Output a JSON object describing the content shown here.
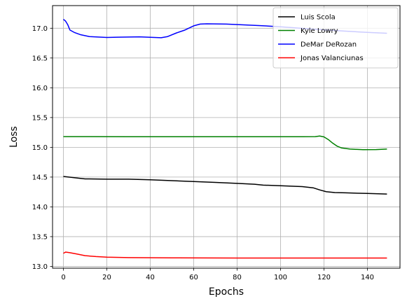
{
  "chart_data": {
    "type": "line",
    "title": "",
    "xlabel": "Epochs",
    "ylabel": "Loss",
    "xlim": [
      -5,
      155
    ],
    "ylim": [
      12.97,
      17.38
    ],
    "xticks": [
      0,
      20,
      40,
      60,
      80,
      100,
      120,
      140
    ],
    "yticks": [
      13.0,
      13.5,
      14.0,
      14.5,
      15.0,
      15.5,
      16.0,
      16.5,
      17.0
    ],
    "ytick_labels": [
      "13.0",
      "13.5",
      "14.0",
      "14.5",
      "15.0",
      "15.5",
      "16.0",
      "16.5",
      "17.0"
    ],
    "grid": true,
    "legend_position": "top-right",
    "series": [
      {
        "name": "Luis Scola",
        "color": "#000000",
        "points": [
          [
            0,
            14.51
          ],
          [
            5,
            14.49
          ],
          [
            10,
            14.47
          ],
          [
            20,
            14.465
          ],
          [
            30,
            14.465
          ],
          [
            40,
            14.455
          ],
          [
            50,
            14.44
          ],
          [
            60,
            14.425
          ],
          [
            70,
            14.41
          ],
          [
            80,
            14.395
          ],
          [
            88,
            14.38
          ],
          [
            92,
            14.365
          ],
          [
            100,
            14.355
          ],
          [
            110,
            14.34
          ],
          [
            115,
            14.32
          ],
          [
            118,
            14.285
          ],
          [
            121,
            14.255
          ],
          [
            125,
            14.24
          ],
          [
            130,
            14.235
          ],
          [
            140,
            14.225
          ],
          [
            149,
            14.215
          ]
        ]
      },
      {
        "name": "Kyle Lowry",
        "color": "#008000",
        "points": [
          [
            0,
            15.18
          ],
          [
            10,
            15.18
          ],
          [
            30,
            15.178
          ],
          [
            60,
            15.178
          ],
          [
            90,
            15.178
          ],
          [
            110,
            15.178
          ],
          [
            116,
            15.18
          ],
          [
            118,
            15.19
          ],
          [
            120,
            15.175
          ],
          [
            122,
            15.13
          ],
          [
            124,
            15.07
          ],
          [
            126,
            15.02
          ],
          [
            128,
            14.99
          ],
          [
            132,
            14.97
          ],
          [
            138,
            14.96
          ],
          [
            144,
            14.962
          ],
          [
            149,
            14.97
          ]
        ]
      },
      {
        "name": "DeMar DeRozan",
        "color": "#0000ff",
        "points": [
          [
            0,
            17.15
          ],
          [
            1,
            17.12
          ],
          [
            2,
            17.06
          ],
          [
            3,
            16.97
          ],
          [
            5,
            16.93
          ],
          [
            8,
            16.89
          ],
          [
            12,
            16.86
          ],
          [
            20,
            16.845
          ],
          [
            25,
            16.85
          ],
          [
            35,
            16.855
          ],
          [
            45,
            16.84
          ],
          [
            48,
            16.86
          ],
          [
            52,
            16.92
          ],
          [
            56,
            16.97
          ],
          [
            60,
            17.04
          ],
          [
            63,
            17.07
          ],
          [
            66,
            17.075
          ],
          [
            75,
            17.07
          ],
          [
            90,
            17.045
          ],
          [
            100,
            17.025
          ],
          [
            115,
            16.985
          ],
          [
            130,
            16.95
          ],
          [
            140,
            16.93
          ],
          [
            149,
            16.915
          ]
        ]
      },
      {
        "name": "Jonas Valanciunas",
        "color": "#ff0000",
        "points": [
          [
            0,
            13.22
          ],
          [
            1,
            13.24
          ],
          [
            3,
            13.23
          ],
          [
            6,
            13.21
          ],
          [
            10,
            13.18
          ],
          [
            15,
            13.165
          ],
          [
            20,
            13.155
          ],
          [
            30,
            13.148
          ],
          [
            50,
            13.143
          ],
          [
            80,
            13.141
          ],
          [
            110,
            13.14
          ],
          [
            130,
            13.14
          ],
          [
            149,
            13.14
          ]
        ]
      }
    ]
  }
}
